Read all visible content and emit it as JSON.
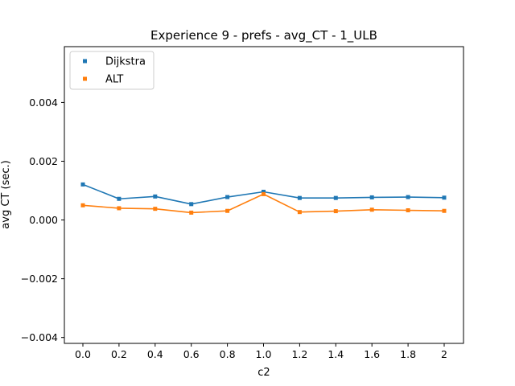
{
  "chart_data": {
    "type": "line",
    "title": "Experience 9 - prefs - avg_CT - 1_ULB",
    "xlabel": "c2",
    "ylabel": "avg CT (sec.)",
    "categories": [
      "0.0",
      "0.2",
      "0.4",
      "0.6",
      "0.8",
      "1.0",
      "1.2",
      "1.4",
      "1.6",
      "1.8",
      "2"
    ],
    "ylim": [
      -0.0042,
      0.0059
    ],
    "yticks": [
      -0.004,
      -0.002,
      0.0,
      0.002,
      0.004
    ],
    "ytick_labels": [
      "−0.004",
      "−0.002",
      "0.000",
      "0.002",
      "0.004"
    ],
    "grid": false,
    "legend_position": "upper left",
    "series": [
      {
        "name": "Dijkstra",
        "color": "#1f77b4",
        "values": [
          0.00121,
          0.00072,
          0.0008,
          0.00054,
          0.00078,
          0.00096,
          0.00075,
          0.00075,
          0.00077,
          0.00078,
          0.00076
        ]
      },
      {
        "name": "ALT",
        "color": "#ff7f0e",
        "values": [
          0.0005,
          0.0004,
          0.00038,
          0.00025,
          0.00031,
          0.00088,
          0.00027,
          0.0003,
          0.00035,
          0.00033,
          0.00031
        ]
      }
    ]
  }
}
